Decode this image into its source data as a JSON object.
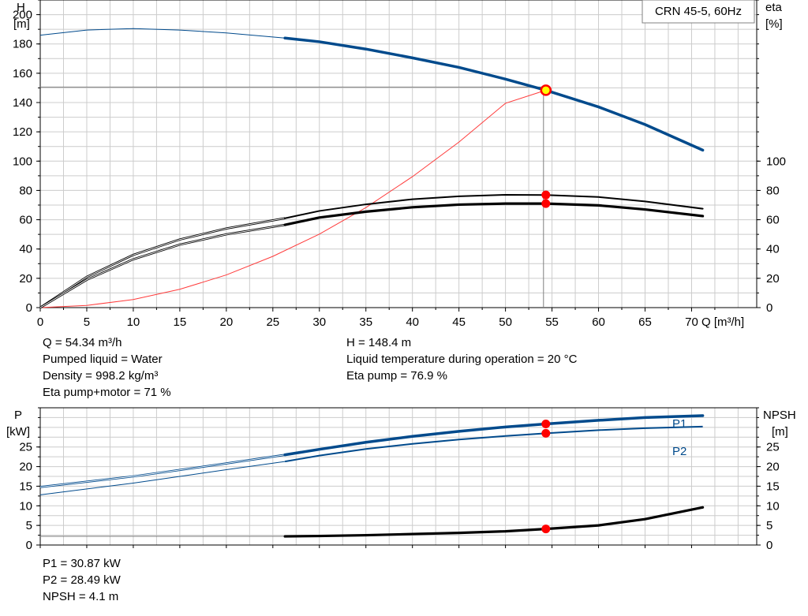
{
  "chart_data": [
    {
      "type": "line",
      "title": "CRN 45-5, 60Hz",
      "xlabel": "Q [m³/h]",
      "ylabel_left": [
        "H",
        "[m]"
      ],
      "ylabel_right": [
        "eta",
        "[%]"
      ],
      "xlim": [
        0,
        77
      ],
      "xticks": [
        0,
        5,
        10,
        15,
        20,
        25,
        30,
        35,
        40,
        45,
        50,
        55,
        60,
        65,
        70
      ],
      "ylim": [
        0,
        210
      ],
      "yticks_left": [
        0,
        20,
        40,
        60,
        80,
        100,
        120,
        140,
        160,
        180,
        200
      ],
      "yticks_right": [
        0,
        20,
        40,
        60,
        80,
        100
      ],
      "grid": true,
      "operating_point": {
        "Q": 54.34,
        "H": 148.4,
        "eta_pump": 76.9,
        "eta_pump_motor": 71
      },
      "series": [
        {
          "name": "H",
          "color": "#004a8c",
          "x": [
            0,
            5,
            10,
            15,
            20,
            26.3,
            30,
            35,
            40,
            45,
            50,
            54.34,
            60,
            65,
            71.2
          ],
          "y": [
            186,
            189.5,
            190.5,
            189.5,
            187.5,
            184,
            181.5,
            176.5,
            170.5,
            164,
            156,
            148.4,
            137,
            125,
            107.5
          ],
          "bold_from": 26.3
        },
        {
          "name": "eta pump",
          "color": "#000000",
          "x": [
            0,
            5,
            10,
            15,
            20,
            26.3,
            30,
            35,
            40,
            45,
            50,
            54.34,
            60,
            65,
            71.2
          ],
          "y": [
            0,
            21,
            36,
            46.5,
            54,
            61,
            66,
            70.5,
            74,
            76,
            77,
            76.9,
            75.5,
            72.5,
            67.5
          ],
          "bold_from": 26.3
        },
        {
          "name": "eta pump+motor",
          "color": "#000000",
          "x": [
            0,
            5,
            10,
            15,
            20,
            26.3,
            30,
            35,
            40,
            45,
            50,
            54.34,
            60,
            65,
            71.2
          ],
          "y": [
            0,
            19,
            33,
            43,
            50,
            56.5,
            61.5,
            65.5,
            68.5,
            70.3,
            71,
            71,
            69.8,
            67,
            62.5
          ],
          "bold_from": 26.3
        },
        {
          "name": "system curve",
          "color": "#ff3b3b",
          "x": [
            0,
            5,
            10,
            15,
            20,
            25,
            30,
            35,
            40,
            45,
            50,
            54.34
          ],
          "y": [
            0,
            1.5,
            5.5,
            12.5,
            22.3,
            35,
            50.2,
            68.3,
            89.4,
            113,
            139.5,
            148.4
          ]
        }
      ]
    },
    {
      "type": "line",
      "xlim": [
        0,
        77
      ],
      "ylabel_left": [
        "P",
        "[kW]"
      ],
      "ylabel_right": [
        "NPSH",
        "[m]"
      ],
      "ylim": [
        0,
        35
      ],
      "yticks_left": [
        0,
        5,
        10,
        15,
        20,
        25
      ],
      "yticks_right": [
        0,
        5,
        10,
        15,
        20,
        25
      ],
      "grid": true,
      "operating_point": {
        "Q": 54.34,
        "P1": 30.87,
        "P2": 28.49,
        "NPSH": 4.1
      },
      "series": [
        {
          "name": "P1",
          "color": "#004a8c",
          "x": [
            0,
            10,
            20,
            26.3,
            30,
            35,
            40,
            45,
            50,
            54.34,
            60,
            65,
            71.2
          ],
          "y": [
            14.8,
            17.5,
            20.8,
            23,
            24.4,
            26.2,
            27.7,
            29,
            30.1,
            30.87,
            31.8,
            32.5,
            33
          ],
          "bold_from": 26.3
        },
        {
          "name": "P2",
          "color": "#004a8c",
          "x": [
            0,
            10,
            20,
            26.3,
            30,
            35,
            40,
            45,
            50,
            54.34,
            60,
            65,
            71.2
          ],
          "y": [
            12.8,
            15.8,
            19.2,
            21.3,
            22.8,
            24.5,
            25.8,
            26.9,
            27.8,
            28.49,
            29.3,
            29.8,
            30.2
          ]
        },
        {
          "name": "NPSH",
          "color": "#000000",
          "x": [
            0,
            26.3,
            30,
            35,
            40,
            45,
            50,
            54.34,
            60,
            65,
            71.2
          ],
          "y": [
            2.2,
            2.2,
            2.3,
            2.5,
            2.8,
            3.1,
            3.5,
            4.1,
            5,
            6.6,
            9.6
          ],
          "bold_from": 26.3
        }
      ]
    }
  ],
  "info_top_left": [
    "Q = 54.34 m³/h",
    "Pumped liquid = Water",
    "Density = 998.2 kg/m³",
    "Eta pump+motor = 71 %"
  ],
  "info_top_right": [
    "H = 148.4 m",
    "Liquid temperature during operation = 20 °C",
    "Eta pump = 76.9 %"
  ],
  "info_bottom": [
    "P1 = 30.87 kW",
    "P2 = 28.49 kW",
    "NPSH = 4.1 m"
  ],
  "colors": {
    "pump_blue": "#004a8c",
    "duty_red": "#ff0000",
    "duty_yellow": "#ffff00",
    "grid": "#cccccc"
  }
}
